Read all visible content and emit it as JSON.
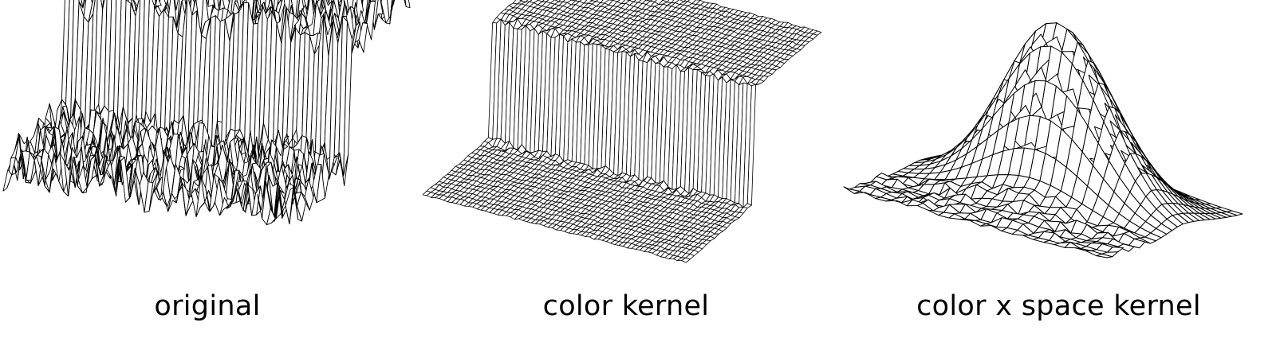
{
  "figure": {
    "line_color": "#000000",
    "fill_color": "#ffffff",
    "panels": [
      {
        "id": "original",
        "caption": "original",
        "surface": "noisy-step-edge"
      },
      {
        "id": "color-kernel",
        "caption": "color kernel",
        "surface": "smooth-step-edge"
      },
      {
        "id": "color-space-kernel",
        "caption": "color x space kernel",
        "surface": "gaussian-peak"
      }
    ]
  }
}
